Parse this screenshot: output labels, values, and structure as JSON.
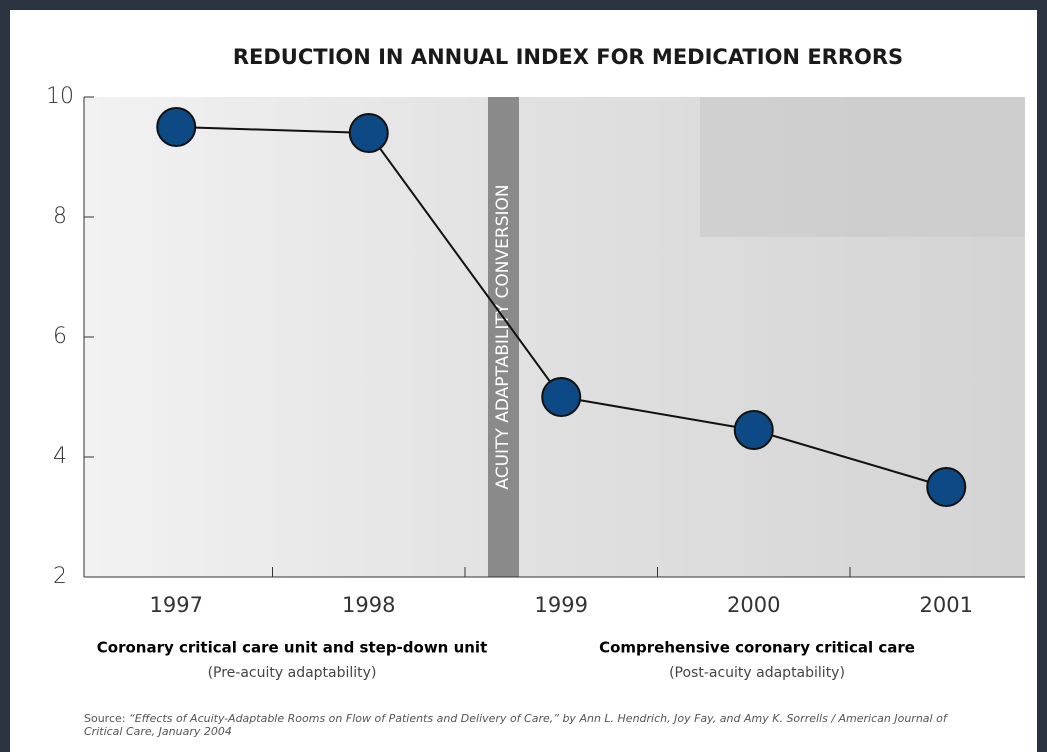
{
  "chart_data": {
    "type": "line",
    "title": "REDUCTION IN ANNUAL INDEX FOR MEDICATION ERRORS",
    "categories": [
      "1997",
      "1998",
      "1999",
      "2000",
      "2001"
    ],
    "values": [
      9.5,
      9.4,
      5.0,
      4.45,
      3.5
    ],
    "color": "#0d4a85",
    "ylim": [
      2,
      10
    ],
    "yticks": [
      2,
      4,
      6,
      8,
      10
    ],
    "band_label": "ACUITY ADAPTABILITY CONVERSION",
    "groups": [
      {
        "title": "Coronary critical care unit and step-down unit",
        "subtitle": "(Pre-acuity adaptability)"
      },
      {
        "title": "Comprehensive coronary critical care",
        "subtitle": "(Post-acuity adaptability)"
      }
    ],
    "source_label": "Source:",
    "source_text": "“Effects of Acuity-Adaptable Rooms on Flow of Patients and Delivery of Care,” by Ann L. Hendrich, Joy Fay, and Amy K. Sorrells / American Journal of Critical Care, January 2004"
  }
}
